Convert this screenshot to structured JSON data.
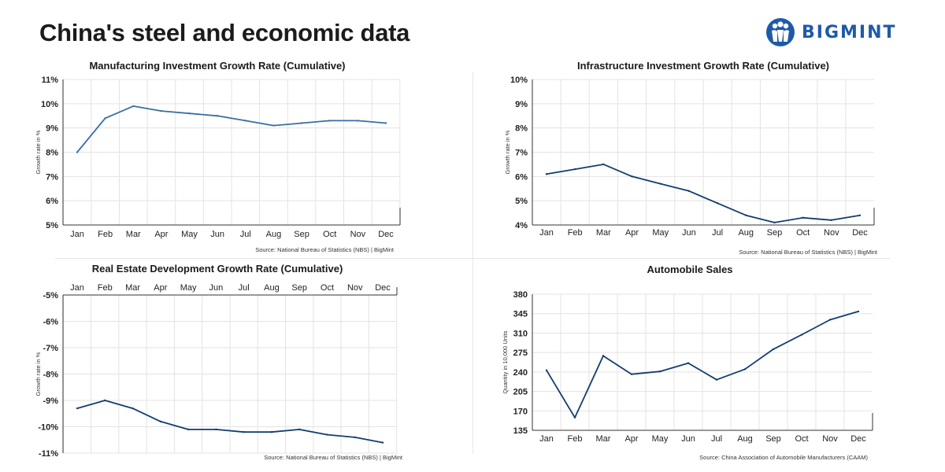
{
  "page": {
    "title": "China's steel and economic data",
    "brand": "BIGMINT"
  },
  "colors": {
    "line_light": "#3a6ea5",
    "line_dark": "#123d70",
    "grid": "#e3e3e3",
    "axis": "#333333",
    "logo": "#1e5aa8"
  },
  "chart_data": [
    {
      "id": "manufacturing",
      "type": "line",
      "title": "Manufacturing Investment Growth Rate (Cumulative)",
      "ylabel": "Growth rate in %",
      "xlabel": "",
      "source": "Source: National Bureau of Statistics (NBS) |  BigMint",
      "categories": [
        "Jan",
        "Feb",
        "Mar",
        "Apr",
        "May",
        "Jun",
        "Jul",
        "Aug",
        "Sep",
        "Oct",
        "Nov",
        "Dec"
      ],
      "values": [
        8.0,
        9.4,
        9.9,
        9.7,
        9.6,
        9.5,
        9.3,
        9.1,
        9.2,
        9.3,
        9.3,
        9.2
      ],
      "ylim": [
        5,
        11
      ],
      "yticks": [
        5,
        6,
        7,
        8,
        9,
        10,
        11
      ],
      "ytick_labels": [
        "5%",
        "6%",
        "7%",
        "8%",
        "9%",
        "10%",
        "11%"
      ],
      "x_axis_position": "bottom",
      "grid": true
    },
    {
      "id": "infrastructure",
      "type": "line",
      "title": "Infrastructure Investment Growth Rate (Cumulative)",
      "ylabel": "Growth rate in %",
      "xlabel": "",
      "source": "Source: National Bureau of Statistics (NBS) |  BigMint",
      "categories": [
        "Jan",
        "Feb",
        "Mar",
        "Apr",
        "May",
        "Jun",
        "Jul",
        "Aug",
        "Sep",
        "Oct",
        "Nov",
        "Dec"
      ],
      "values": [
        6.1,
        6.3,
        6.5,
        6.0,
        5.7,
        5.4,
        4.9,
        4.4,
        4.1,
        4.3,
        4.2,
        4.4
      ],
      "ylim": [
        4,
        10
      ],
      "yticks": [
        4,
        5,
        6,
        7,
        8,
        9,
        10
      ],
      "ytick_labels": [
        "4%",
        "5%",
        "6%",
        "7%",
        "8%",
        "9%",
        "10%"
      ],
      "x_axis_position": "bottom",
      "grid": true
    },
    {
      "id": "realestate",
      "type": "line",
      "title": "Real Estate Development Growth Rate (Cumulative)",
      "ylabel": "Growth rate in %",
      "xlabel": "",
      "source": "Source: National Bureau of Statistics (NBS) |  BigMint",
      "categories": [
        "Jan",
        "Feb",
        "Mar",
        "Apr",
        "May",
        "Jun",
        "Jul",
        "Aug",
        "Sep",
        "Oct",
        "Nov",
        "Dec"
      ],
      "values": [
        -9.3,
        -9.0,
        -9.3,
        -9.8,
        -10.1,
        -10.1,
        -10.2,
        -10.2,
        -10.1,
        -10.3,
        -10.4,
        -10.6
      ],
      "ylim": [
        -11,
        -5
      ],
      "yticks": [
        -11,
        -10,
        -9,
        -8,
        -7,
        -6,
        -5
      ],
      "ytick_labels": [
        "-11%",
        "-10%",
        "-9%",
        "-8%",
        "-7%",
        "-6%",
        "-5%"
      ],
      "x_axis_position": "top",
      "grid": true
    },
    {
      "id": "automobile",
      "type": "line",
      "title": "Automobile Sales",
      "ylabel": "Quantity in 10,000 Units",
      "xlabel": "",
      "source": "Source: China Association of Automobile Manufacturers (CAAM)",
      "categories": [
        "Jan",
        "Feb",
        "Mar",
        "Apr",
        "May",
        "Jun",
        "Jul",
        "Aug",
        "Sep",
        "Oct",
        "Nov",
        "Dec"
      ],
      "values": [
        243,
        158,
        269,
        236,
        241,
        256,
        226,
        245,
        281,
        307,
        334,
        349
      ],
      "ylim": [
        135,
        380
      ],
      "yticks": [
        135,
        170,
        205,
        240,
        275,
        310,
        345,
        380
      ],
      "ytick_labels": [
        "135",
        "170",
        "205",
        "240",
        "275",
        "310",
        "345",
        "380"
      ],
      "x_axis_position": "bottom",
      "grid": true
    }
  ]
}
